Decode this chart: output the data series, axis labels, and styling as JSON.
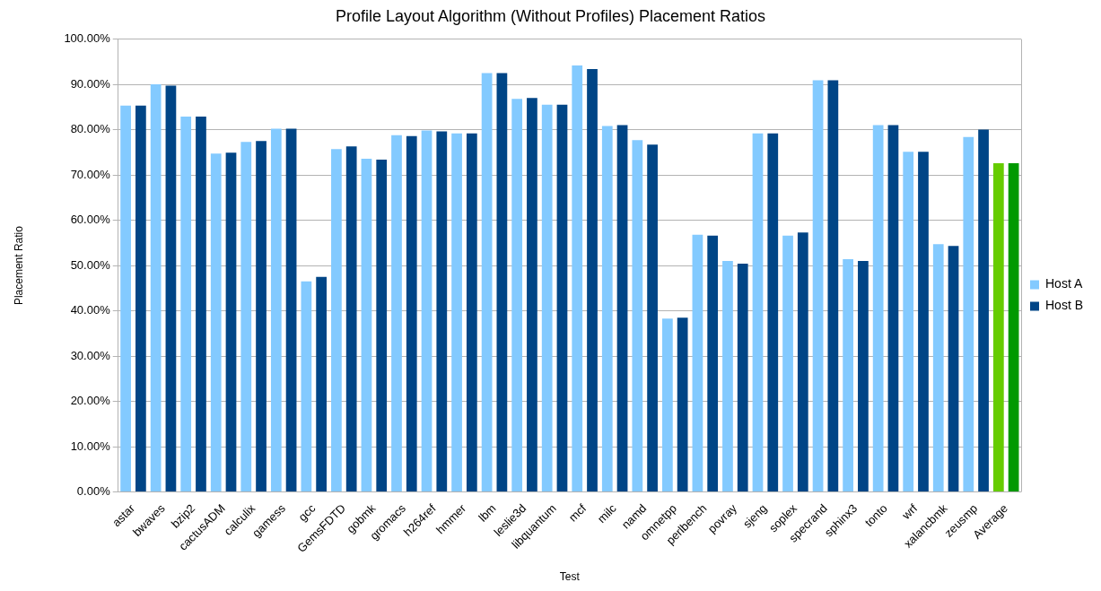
{
  "chart_data": {
    "type": "bar",
    "title": "Profile Layout Algorithm (Without Profiles) Placement Ratios",
    "xlabel": "Test",
    "ylabel": "Placement Ratio",
    "categories": [
      "astar",
      "bwaves",
      "bzip2",
      "cactusADM",
      "calculix",
      "gamess",
      "gcc",
      "GemsFDTD",
      "gobmk",
      "gromacs",
      "h264ref",
      "hmmer",
      "lbm",
      "leslie3d",
      "libquantum",
      "mcf",
      "milc",
      "namd",
      "omnetpp",
      "perlbench",
      "povray",
      "sjeng",
      "soplex",
      "specrand",
      "sphinx3",
      "tonto",
      "wrf",
      "xalancbmk",
      "zeusmp",
      "Average"
    ],
    "series": [
      {
        "name": "Host A",
        "color": "#83caff",
        "colors": [
          "#83caff",
          "#83caff",
          "#83caff",
          "#83caff",
          "#83caff",
          "#83caff",
          "#83caff",
          "#83caff",
          "#83caff",
          "#83caff",
          "#83caff",
          "#83caff",
          "#83caff",
          "#83caff",
          "#83caff",
          "#83caff",
          "#83caff",
          "#83caff",
          "#83caff",
          "#83caff",
          "#83caff",
          "#83caff",
          "#83caff",
          "#83caff",
          "#83caff",
          "#83caff",
          "#83caff",
          "#83caff",
          "#83caff",
          "#66cc00"
        ],
        "values": [
          85.3,
          90.0,
          82.9,
          74.7,
          77.3,
          80.2,
          46.5,
          75.7,
          73.6,
          78.8,
          79.8,
          79.2,
          92.5,
          86.8,
          85.5,
          94.2,
          80.8,
          77.7,
          38.3,
          56.8,
          51.0,
          79.2,
          56.6,
          90.9,
          51.4,
          81.0,
          75.1,
          54.7,
          78.4,
          72.6
        ]
      },
      {
        "name": "Host B",
        "color": "#004586",
        "colors": [
          "#004586",
          "#004586",
          "#004586",
          "#004586",
          "#004586",
          "#004586",
          "#004586",
          "#004586",
          "#004586",
          "#004586",
          "#004586",
          "#004586",
          "#004586",
          "#004586",
          "#004586",
          "#004586",
          "#004586",
          "#004586",
          "#004586",
          "#004586",
          "#004586",
          "#004586",
          "#004586",
          "#004586",
          "#004586",
          "#004586",
          "#004586",
          "#004586",
          "#004586",
          "#009900"
        ],
        "values": [
          85.3,
          89.7,
          82.9,
          74.9,
          77.5,
          80.2,
          47.5,
          76.3,
          73.4,
          78.6,
          79.6,
          79.2,
          92.5,
          87.0,
          85.5,
          93.4,
          81.0,
          76.7,
          38.5,
          56.6,
          50.4,
          79.2,
          57.3,
          90.9,
          51.0,
          81.0,
          75.1,
          54.3,
          80.0,
          72.6
        ]
      }
    ],
    "ylim": [
      0,
      100
    ],
    "yticks": [
      {
        "value": 0,
        "label": "0.00%"
      },
      {
        "value": 10,
        "label": "10.00%"
      },
      {
        "value": 20,
        "label": "20.00%"
      },
      {
        "value": 30,
        "label": "30.00%"
      },
      {
        "value": 40,
        "label": "40.00%"
      },
      {
        "value": 50,
        "label": "50.00%"
      },
      {
        "value": 60,
        "label": "60.00%"
      },
      {
        "value": 70,
        "label": "70.00%"
      },
      {
        "value": 80,
        "label": "80.00%"
      },
      {
        "value": 90,
        "label": "90.00%"
      },
      {
        "value": 100,
        "label": "100.00%"
      }
    ],
    "grid": "y",
    "legend": "right"
  }
}
